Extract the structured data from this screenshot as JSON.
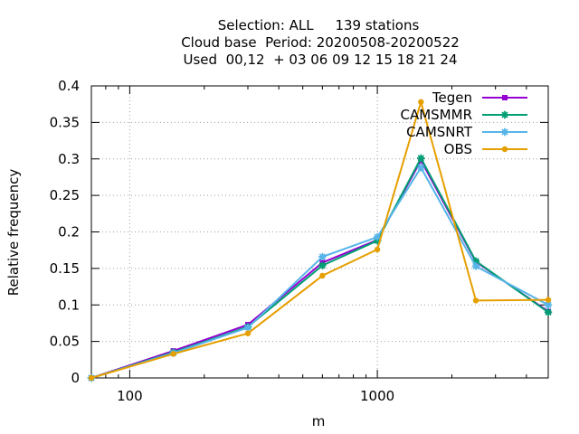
{
  "chart_data": {
    "type": "line",
    "title_lines": [
      "Selection: ALL     139 stations",
      "Cloud base  Period: 20200508-20200522",
      "Used  00,12  + 03 06 09 12 15 18 21 24"
    ],
    "xlabel": "m",
    "ylabel": "Relative frequency",
    "x_scale": "log",
    "xlim": [
      70,
      4900
    ],
    "ylim": [
      0,
      0.4
    ],
    "x_ticks": [
      100,
      1000
    ],
    "x_tick_labels": [
      "100",
      "1000"
    ],
    "y_ticks": [
      0,
      0.05,
      0.1,
      0.15,
      0.2,
      0.25,
      0.3,
      0.35,
      0.4
    ],
    "y_tick_labels": [
      "0",
      "0.05",
      "0.1",
      "0.15",
      "0.2",
      "0.25",
      "0.3",
      "0.35",
      "0.4"
    ],
    "grid": true,
    "legend_position": "top-right",
    "x": [
      70,
      150,
      300,
      600,
      1000,
      1500,
      2500,
      4900
    ],
    "series": [
      {
        "name": "Tegen",
        "color": "#9400d3",
        "marker": "square",
        "values": [
          0.0,
          0.037,
          0.073,
          0.158,
          0.189,
          0.298,
          0.159,
          0.091
        ]
      },
      {
        "name": "CAMSMMR",
        "color": "#009e73",
        "marker": "star",
        "values": [
          0.0,
          0.035,
          0.07,
          0.154,
          0.188,
          0.301,
          0.16,
          0.09
        ]
      },
      {
        "name": "CAMSNRT",
        "color": "#56b4e9",
        "marker": "star",
        "values": [
          0.0,
          0.034,
          0.069,
          0.166,
          0.193,
          0.288,
          0.153,
          0.1
        ]
      },
      {
        "name": "OBS",
        "color": "#e69f00",
        "marker": "circle",
        "values": [
          0.0,
          0.033,
          0.061,
          0.14,
          0.176,
          0.378,
          0.106,
          0.107
        ]
      }
    ]
  }
}
